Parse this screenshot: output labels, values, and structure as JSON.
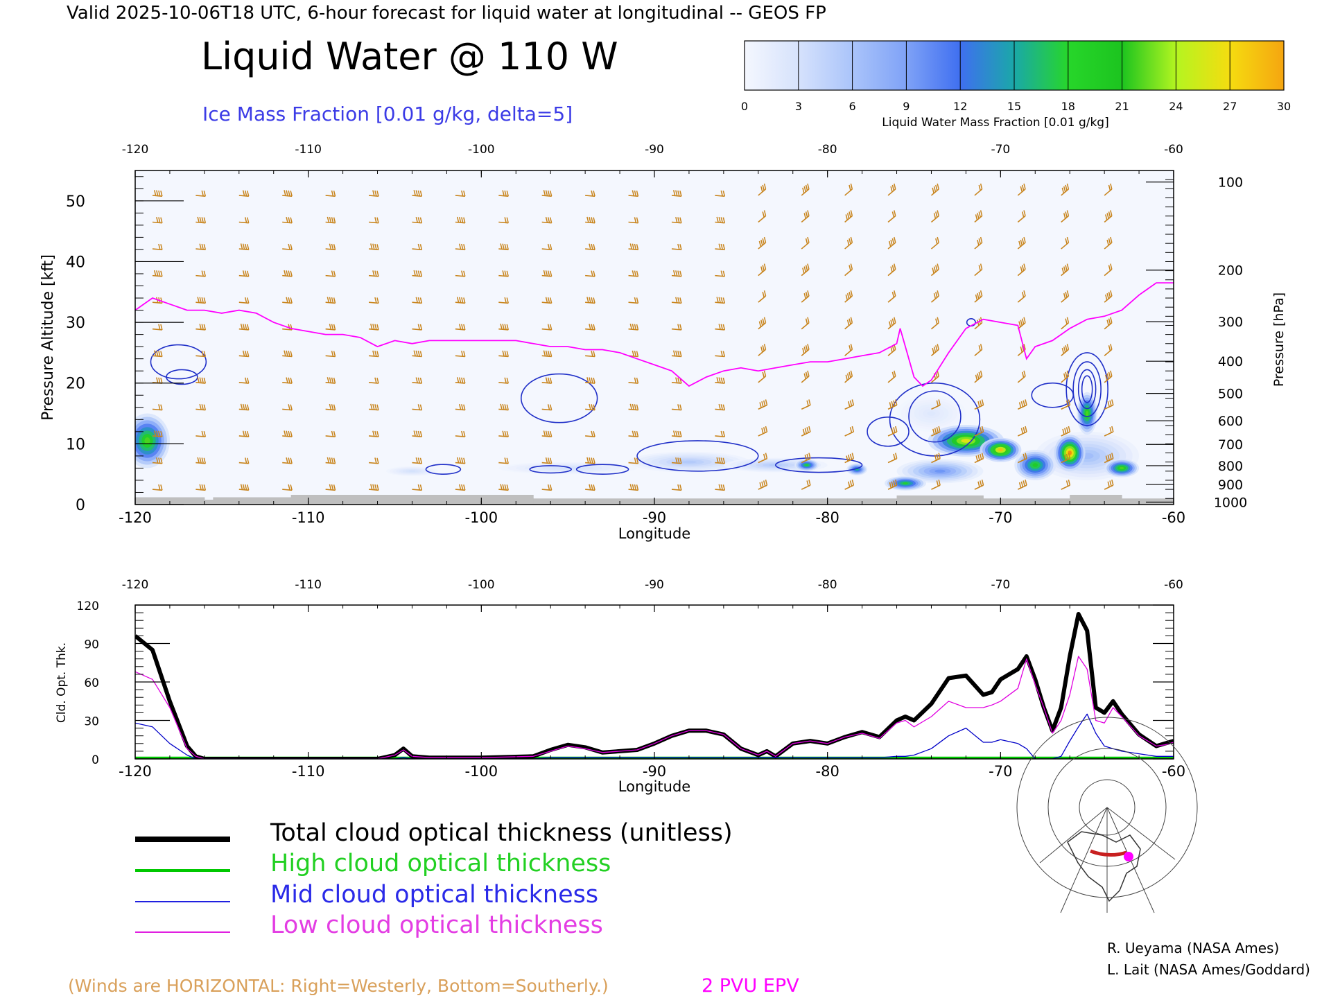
{
  "header": {
    "valid_line": "Valid 2025-10-06T18 UTC, 6-hour forecast for liquid water at longitudinal -- GEOS FP",
    "title": "Liquid Water @ 110 W",
    "subtitle": "Ice Mass Fraction [0.01 g/kg, delta=5]"
  },
  "colorbar": {
    "ticks": [
      "0",
      "3",
      "6",
      "9",
      "12",
      "15",
      "18",
      "21",
      "24",
      "27",
      "30"
    ],
    "label": "Liquid Water Mass Fraction [0.01 g/kg]",
    "colors": [
      "#f4f7fe",
      "#d6e2fc",
      "#aac4fa",
      "#7fa2f7",
      "#3f6ff0",
      "#1aa8a8",
      "#27d62a",
      "#1cc41f",
      "#b4f520",
      "#f5dc10",
      "#f5a510",
      "#ee3010"
    ]
  },
  "chart_data": [
    {
      "type": "heatmap",
      "xlabel": "Longitude",
      "ylabel": "Pressure Altitude [kft]",
      "ylabel_right": "Pressure [hPa]",
      "xlim": [
        -120,
        -60
      ],
      "ylim": [
        0,
        55
      ],
      "x_ticks": [
        "-120",
        "-110",
        "-100",
        "-90",
        "-80",
        "-70",
        "-60"
      ],
      "y_ticks": [
        "0",
        "10",
        "20",
        "30",
        "40",
        "50"
      ],
      "pressure_ticks": [
        {
          "label": "100",
          "kft": 53.1
        },
        {
          "label": "200",
          "kft": 38.6
        },
        {
          "label": "300",
          "kft": 30.1
        },
        {
          "label": "400",
          "kft": 23.6
        },
        {
          "label": "500",
          "kft": 18.3
        },
        {
          "label": "600",
          "kft": 13.8
        },
        {
          "label": "700",
          "kft": 9.9
        },
        {
          "label": "800",
          "kft": 6.4
        },
        {
          "label": "900",
          "kft": 3.3
        },
        {
          "label": "1000",
          "kft": 0.4
        }
      ],
      "liquid_water_blobs": [
        {
          "lon": -119.3,
          "kft": 10.5,
          "rx": 1.3,
          "ry": 4.5,
          "peak": 20
        },
        {
          "lon": -72,
          "kft": 10.5,
          "rx": 2.2,
          "ry": 2.6,
          "peak": 24
        },
        {
          "lon": -70,
          "kft": 9.0,
          "rx": 1.2,
          "ry": 2.0,
          "peak": 26
        },
        {
          "lon": -68,
          "kft": 6.5,
          "rx": 1.2,
          "ry": 2.5,
          "peak": 18
        },
        {
          "lon": -66,
          "kft": 8.5,
          "rx": 0.9,
          "ry": 3.0,
          "peak": 28
        },
        {
          "lon": -65,
          "kft": 15.0,
          "rx": 0.6,
          "ry": 3.5,
          "peak": 20
        },
        {
          "lon": -63,
          "kft": 6.0,
          "rx": 1.0,
          "ry": 1.5,
          "peak": 20
        },
        {
          "lon": -81.2,
          "kft": 6.5,
          "rx": 0.7,
          "ry": 1.0,
          "peak": 17
        },
        {
          "lon": -78.3,
          "kft": 5.8,
          "rx": 0.6,
          "ry": 1.0,
          "peak": 15
        },
        {
          "lon": -75.5,
          "kft": 3.5,
          "rx": 1.2,
          "ry": 1.2,
          "peak": 17
        },
        {
          "lon": -73.5,
          "kft": 5.5,
          "rx": 2.5,
          "ry": 2.0,
          "peak": 9
        },
        {
          "lon": -88,
          "kft": 7.0,
          "rx": 3.5,
          "ry": 1.7,
          "peak": 5
        },
        {
          "lon": -95,
          "kft": 6.0,
          "rx": 4.0,
          "ry": 1.0,
          "peak": 3
        },
        {
          "lon": -104,
          "kft": 5.5,
          "rx": 1.5,
          "ry": 0.8,
          "peak": 3
        },
        {
          "lon": -83,
          "kft": 6.5,
          "rx": 3.0,
          "ry": 1.2,
          "peak": 5
        },
        {
          "lon": -74,
          "kft": 15.0,
          "rx": 2.0,
          "ry": 3.0,
          "peak": 2
        },
        {
          "lon": -65,
          "kft": 8.0,
          "rx": 3.0,
          "ry": 4.0,
          "peak": 6
        }
      ],
      "ice_contours": [
        {
          "lon": -117.5,
          "kft": 23.5,
          "rx": 1.6,
          "ry": 2.8
        },
        {
          "lon": -117.3,
          "kft": 21.0,
          "rx": 0.9,
          "ry": 1.2
        },
        {
          "lon": -95.5,
          "kft": 17.5,
          "rx": 2.2,
          "ry": 4.0
        },
        {
          "lon": -87.5,
          "kft": 8.0,
          "rx": 3.5,
          "ry": 2.5
        },
        {
          "lon": -80.5,
          "kft": 6.5,
          "rx": 2.5,
          "ry": 1.2
        },
        {
          "lon": -102.2,
          "kft": 5.8,
          "rx": 1.0,
          "ry": 0.8
        },
        {
          "lon": -93.0,
          "kft": 5.8,
          "rx": 1.5,
          "ry": 0.8
        },
        {
          "lon": -96.0,
          "kft": 5.8,
          "rx": 1.2,
          "ry": 0.6
        },
        {
          "lon": -73.8,
          "kft": 14.0,
          "rx": 2.6,
          "ry": 6.0
        },
        {
          "lon": -73.8,
          "kft": 14.5,
          "rx": 1.5,
          "ry": 4.2
        },
        {
          "lon": -76.5,
          "kft": 12.0,
          "rx": 1.2,
          "ry": 2.4
        },
        {
          "lon": -67.0,
          "kft": 18.0,
          "rx": 1.2,
          "ry": 2.0
        },
        {
          "lon": -65.0,
          "kft": 19.0,
          "rx": 1.2,
          "ry": 6.0
        },
        {
          "lon": -65.0,
          "kft": 19.0,
          "rx": 0.8,
          "ry": 4.5
        },
        {
          "lon": -65.0,
          "kft": 19.0,
          "rx": 0.5,
          "ry": 3.2
        },
        {
          "lon": -65.0,
          "kft": 19.0,
          "rx": 0.3,
          "ry": 2.2
        },
        {
          "lon": -71.7,
          "kft": 30.0,
          "rx": 0.25,
          "ry": 0.6
        }
      ],
      "epv_2pvu": {
        "lon": [
          -120,
          -119,
          -118,
          -117,
          -116,
          -115,
          -114,
          -113,
          -112,
          -111,
          -110,
          -109,
          -108,
          -107,
          -106,
          -105,
          -104,
          -103,
          -102,
          -101,
          -100,
          -99,
          -98,
          -97,
          -96,
          -95,
          -94,
          -93,
          -92,
          -91,
          -90,
          -89,
          -88,
          -87,
          -86,
          -85,
          -84,
          -83,
          -82,
          -81,
          -80,
          -79,
          -78,
          -77,
          -76,
          -75.8,
          -75.5,
          -75,
          -74.5,
          -74,
          -73,
          -72,
          -71,
          -70,
          -69,
          -68.5,
          -68,
          -67,
          -66,
          -65,
          -64,
          -63,
          -62,
          -61,
          -60
        ],
        "kft": [
          32,
          34,
          33,
          32,
          32,
          31.5,
          32,
          31.5,
          30,
          29,
          28.5,
          28,
          28,
          27.5,
          26,
          27,
          26.5,
          27,
          27,
          27,
          27,
          27,
          27,
          26.5,
          26,
          26,
          25.5,
          25.5,
          25,
          24,
          23,
          22,
          19.5,
          21,
          22,
          22.5,
          22,
          22.5,
          23,
          23.5,
          23.5,
          24,
          24.5,
          25,
          26.5,
          29,
          26,
          21,
          19.5,
          20.5,
          25,
          29,
          30.5,
          30,
          29.5,
          24,
          26,
          27,
          29,
          30.5,
          31,
          32,
          34.5,
          36.5,
          36.5
        ]
      },
      "terrain": [
        {
          "lon0": -120,
          "lon1": -116,
          "kft": 1.2
        },
        {
          "lon0": -116,
          "lon1": -115.5,
          "kft": 0.8
        },
        {
          "lon0": -115.5,
          "lon1": -111,
          "kft": 1.2
        },
        {
          "lon0": -111,
          "lon1": -106,
          "kft": 1.6
        },
        {
          "lon0": -106,
          "lon1": -97,
          "kft": 1.6
        },
        {
          "lon0": -97,
          "lon1": -76,
          "kft": 1.0
        },
        {
          "lon0": -76,
          "lon1": -71,
          "kft": 1.5
        },
        {
          "lon0": -71,
          "lon1": -66,
          "kft": 1.0
        },
        {
          "lon0": -66,
          "lon1": -63,
          "kft": 1.6
        },
        {
          "lon0": -63,
          "lon1": -60,
          "kft": 1.0
        }
      ]
    },
    {
      "type": "line",
      "xlabel": "Longitude",
      "ylabel": "Cld. Opt. Thk.",
      "xlim": [
        -120,
        -60
      ],
      "ylim": [
        0,
        120
      ],
      "x_ticks": [
        "-120",
        "-110",
        "-100",
        "-90",
        "-80",
        "-70",
        "-60"
      ],
      "y_ticks": [
        "0",
        "30",
        "60",
        "90",
        "120"
      ],
      "x": [
        -120,
        -119,
        -118,
        -117,
        -116.5,
        -116,
        -115,
        -110,
        -106,
        -105,
        -104.5,
        -104,
        -103,
        -100,
        -97,
        -96,
        -95,
        -94,
        -93,
        -92,
        -91,
        -90,
        -89,
        -88,
        -87,
        -86,
        -85,
        -84,
        -83.5,
        -83,
        -82,
        -81,
        -80,
        -79,
        -78,
        -77,
        -76,
        -75.5,
        -75,
        -74,
        -73,
        -72,
        -71,
        -70.5,
        -70,
        -69,
        -68.5,
        -68,
        -67.5,
        -67,
        -66.5,
        -66,
        -65.5,
        -65,
        -64.5,
        -64,
        -63.5,
        -63,
        -62,
        -61,
        -60.5,
        -60
      ],
      "series": [
        {
          "name": "Total cloud optical thickness (unitless)",
          "color": "#000000",
          "width": 6,
          "values": [
            96,
            85,
            45,
            10,
            2,
            0,
            0,
            0,
            0,
            3,
            8,
            2,
            1,
            1,
            2,
            7,
            11,
            9,
            5,
            6,
            7,
            12,
            18,
            22,
            22,
            19,
            8,
            3,
            6,
            2,
            12,
            14,
            12,
            17,
            21,
            17,
            30,
            33,
            30,
            43,
            63,
            65,
            50,
            52,
            62,
            70,
            80,
            62,
            40,
            22,
            40,
            80,
            113,
            100,
            40,
            36,
            45,
            35,
            19,
            10,
            12,
            14
          ]
        },
        {
          "name": "High cloud optical thickness",
          "color": "#00c800",
          "width": 3,
          "values": [
            1,
            1,
            1,
            1,
            1,
            1,
            1,
            1,
            1,
            1,
            1,
            1,
            1,
            1,
            1,
            1,
            1,
            1,
            1,
            1,
            1,
            1,
            1,
            1,
            1,
            1,
            1,
            1,
            1,
            1,
            1,
            1,
            1,
            1,
            1,
            1,
            1,
            1,
            1,
            1,
            1,
            1,
            1,
            1,
            1,
            1,
            1,
            1,
            1,
            1,
            1,
            1,
            1,
            1,
            1,
            1,
            1,
            1,
            1,
            1,
            1,
            1
          ]
        },
        {
          "name": "Mid cloud optical thickness",
          "color": "#0000c8",
          "width": 1.3,
          "values": [
            28,
            25,
            12,
            3,
            0,
            0,
            0,
            0,
            0,
            0,
            1,
            0,
            0,
            0,
            0,
            1,
            1,
            1,
            1,
            1,
            1,
            1,
            1,
            1,
            1,
            1,
            1,
            1,
            1,
            1,
            1,
            1,
            1,
            1,
            1,
            1,
            2,
            2,
            3,
            8,
            18,
            24,
            13,
            13,
            15,
            12,
            8,
            0,
            0,
            0,
            2,
            14,
            25,
            35,
            20,
            10,
            8,
            6,
            4,
            2,
            2,
            2
          ]
        },
        {
          "name": "Low cloud optical thickness",
          "color": "#e000e0",
          "width": 1.3,
          "values": [
            68,
            62,
            40,
            8,
            2,
            0,
            0,
            0,
            0,
            3,
            7,
            2,
            1,
            1,
            2,
            6,
            10,
            8,
            5,
            6,
            7,
            12,
            18,
            22,
            22,
            19,
            8,
            3,
            6,
            2,
            12,
            14,
            12,
            17,
            20,
            16,
            28,
            30,
            25,
            33,
            45,
            40,
            40,
            42,
            45,
            55,
            78,
            58,
            40,
            20,
            30,
            50,
            80,
            70,
            30,
            28,
            40,
            33,
            18,
            10,
            11,
            13
          ]
        }
      ]
    }
  ],
  "legend": {
    "items": [
      {
        "label": "Total cloud optical thickness (unitless)",
        "color": "#000000"
      },
      {
        "label": "High cloud optical thickness",
        "color": "#00c800"
      },
      {
        "label": "Mid cloud optical thickness",
        "color": "#2020e0"
      },
      {
        "label": "Low cloud optical thickness",
        "color": "#e020e0"
      }
    ]
  },
  "footer": {
    "winds_note": "(Winds are HORIZONTAL: Right=Westerly, Bottom=Southerly.)",
    "epv_label": "2 PVU EPV",
    "credit1": "R. Ueyama (NASA Ames)",
    "credit2": "L. Lait (NASA Ames/Goddard)"
  },
  "colors": {
    "barb": "#c8841c",
    "epv": "#ff00ff",
    "ice": "#1f2fc8",
    "terrain": "#bfbfbf",
    "subtitle": "#3b3be6",
    "winds_note": "#d9a05a"
  }
}
